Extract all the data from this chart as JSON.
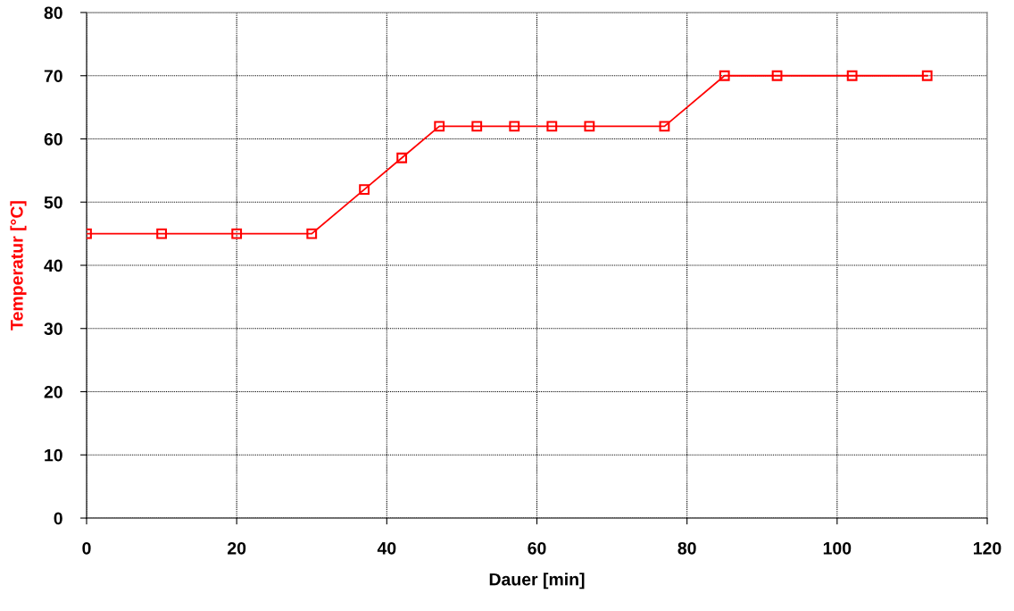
{
  "chart_data": {
    "type": "line",
    "xlabel": "Dauer [min]",
    "ylabel": "Temperatur [°C]",
    "x": [
      0,
      10,
      20,
      30,
      37,
      42,
      47,
      52,
      57,
      62,
      67,
      77,
      85,
      92,
      102,
      112
    ],
    "series": [
      {
        "color": "#ff0000",
        "values": [
          45,
          45,
          45,
          45,
          52,
          57,
          62,
          62,
          62,
          62,
          62,
          62,
          70,
          70,
          70,
          70
        ]
      }
    ],
    "xlim": [
      0,
      120
    ],
    "xticks": [
      0,
      20,
      40,
      60,
      80,
      100,
      120
    ],
    "ylim": [
      0,
      80
    ],
    "yticks": [
      0,
      10,
      20,
      30,
      40,
      50,
      60,
      70,
      80
    ],
    "grid": true,
    "marker": "square",
    "line_style": "solid",
    "legend": false
  }
}
